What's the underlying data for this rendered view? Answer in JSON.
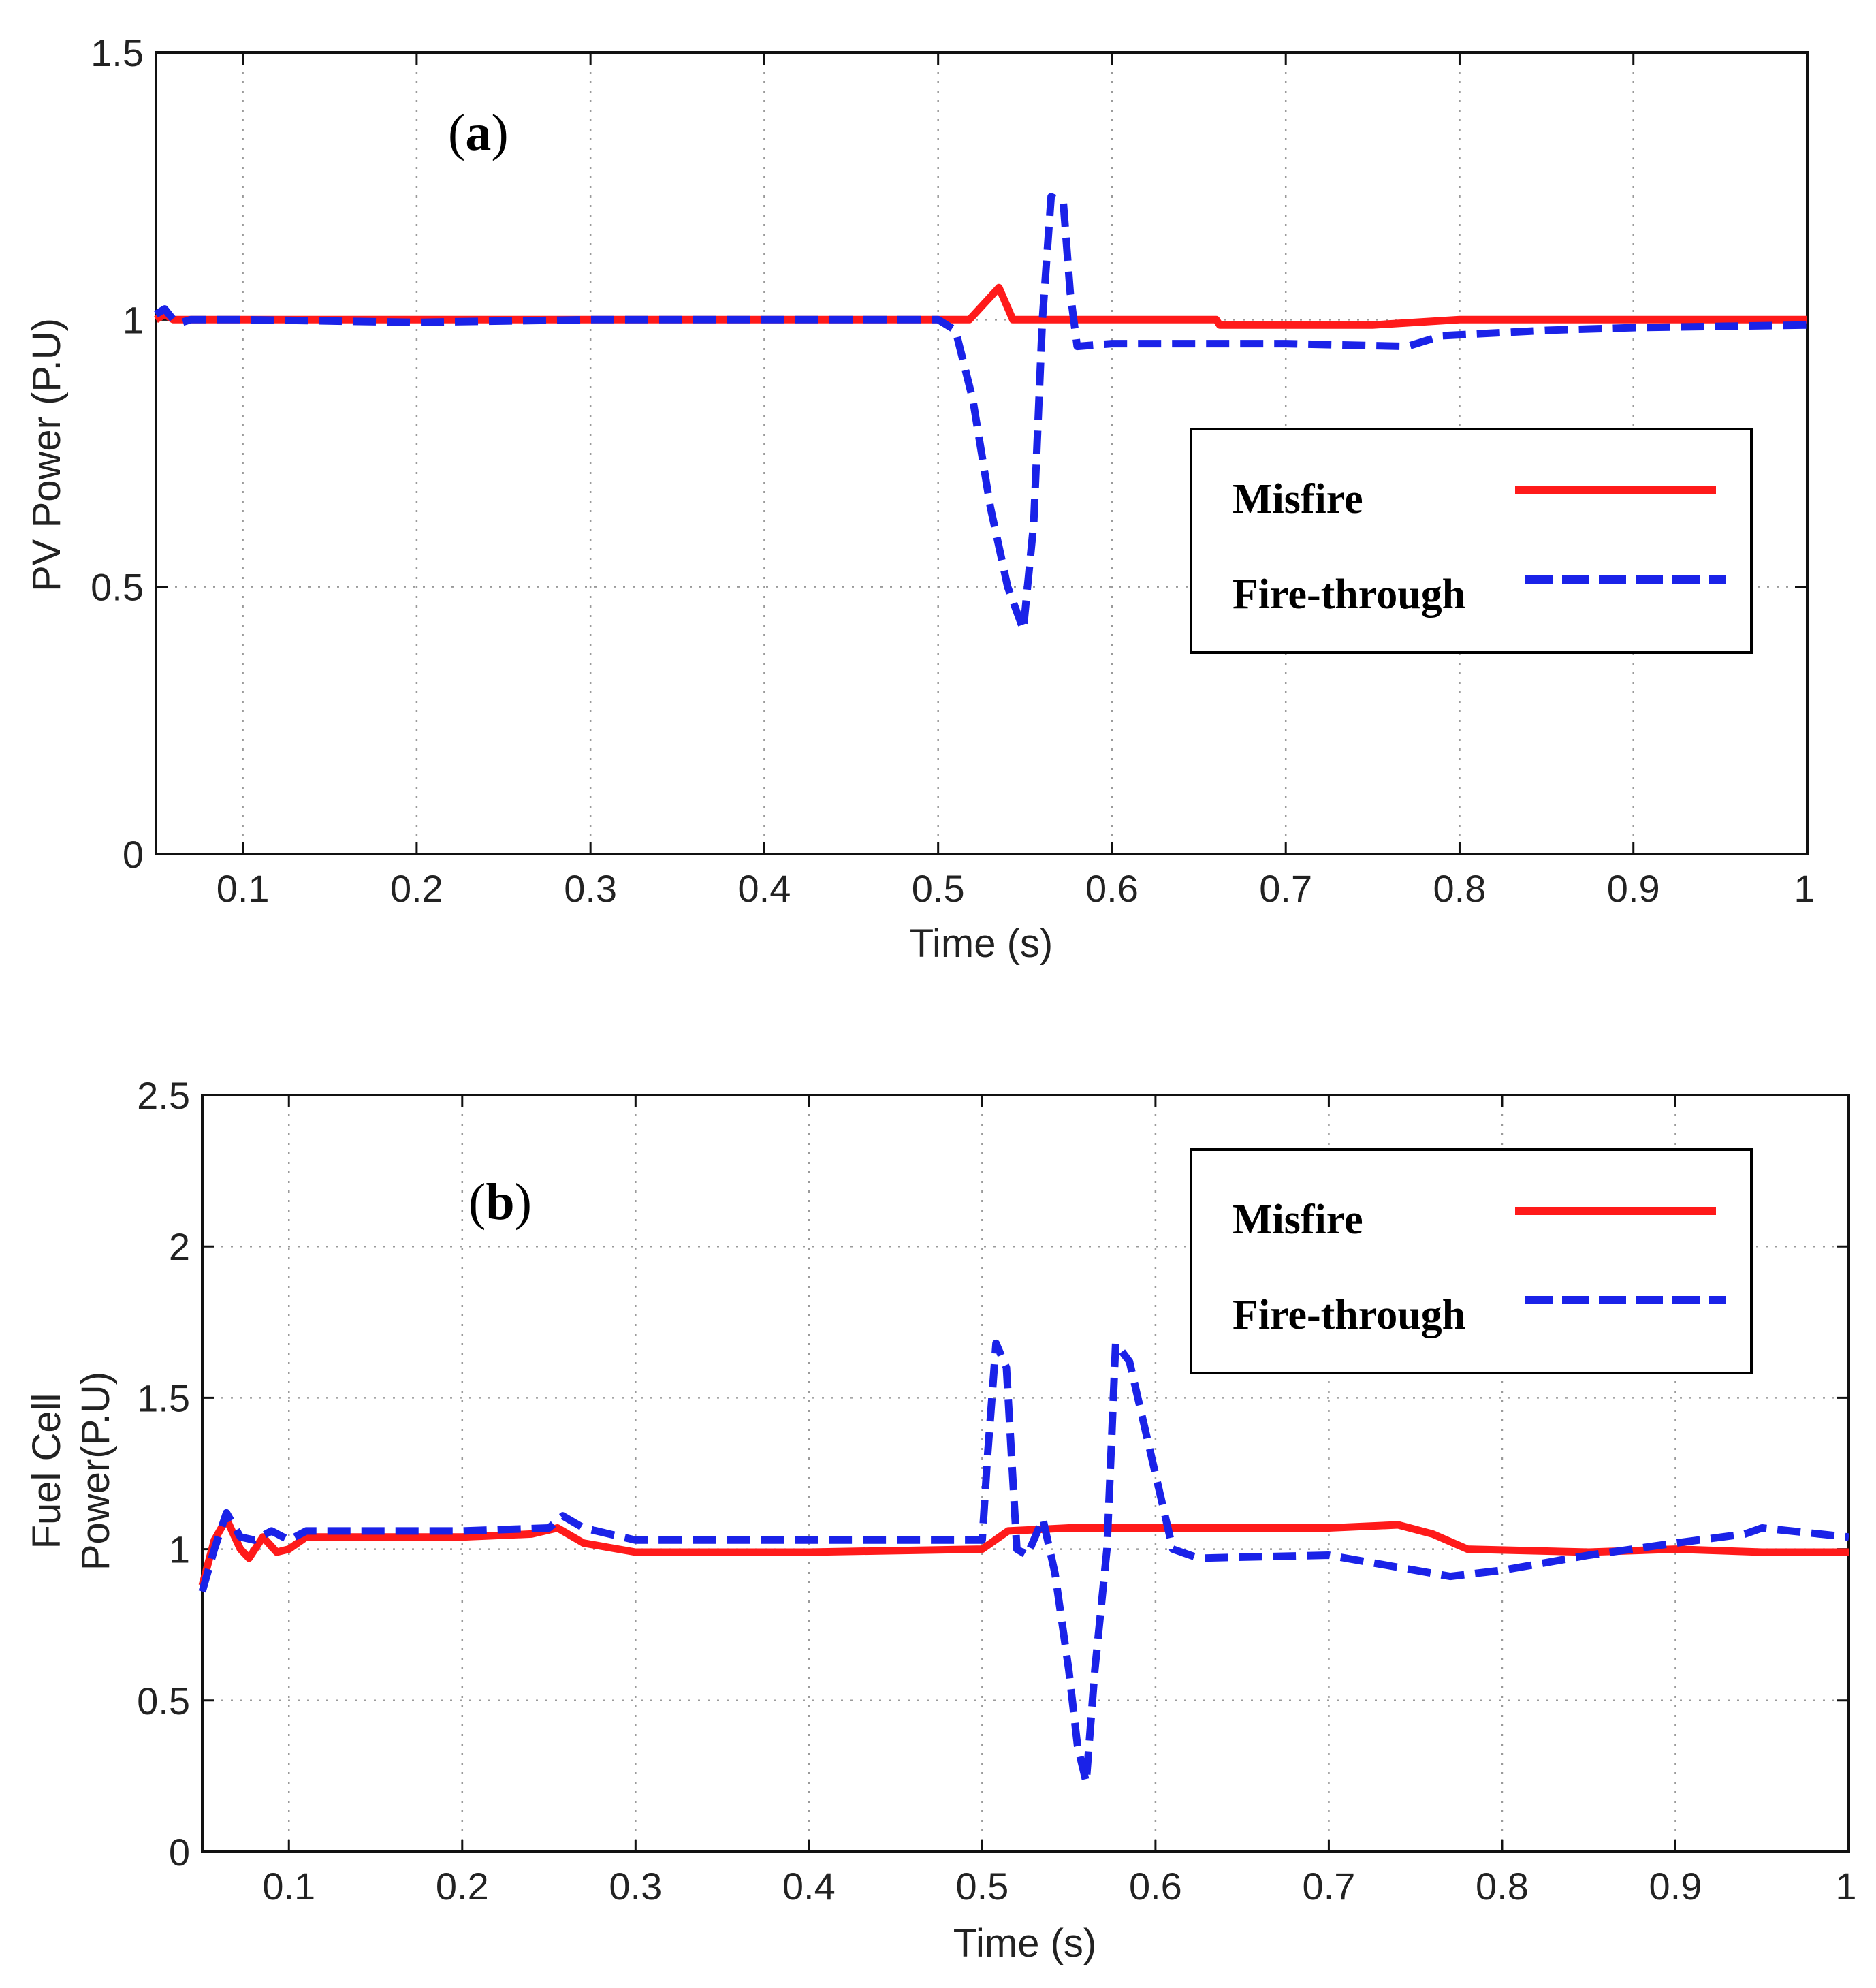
{
  "colors": {
    "misfire": "#ff1a1a",
    "fire_through": "#1a22e8",
    "grid": "#9a9a9a",
    "axis": "#111111"
  },
  "chart_data": [
    {
      "type": "line",
      "panel_label": "a",
      "title": "",
      "xlabel": "Time (s)",
      "ylabel_lines": [
        "PV Power (P.U)"
      ],
      "xlim": [
        0.05,
        1
      ],
      "ylim": [
        0,
        1.5
      ],
      "grid": true,
      "legend_position": "center-right",
      "x_ticks": [
        0.1,
        0.2,
        0.3,
        0.4,
        0.5,
        0.6,
        0.7,
        0.8,
        0.9,
        1
      ],
      "x_tick_labels": [
        "0.1",
        "0.2",
        "0.3",
        "0.4",
        "0.5",
        "0.6",
        "0.7",
        "0.8",
        "0.9",
        "1"
      ],
      "y_ticks": [
        0,
        0.5,
        1,
        1.5
      ],
      "y_tick_labels": [
        "0",
        "0.5",
        "1",
        "1.5"
      ],
      "series": [
        {
          "name": "Misfire",
          "style": "solid",
          "x": [
            0.05,
            0.055,
            0.06,
            0.07,
            0.08,
            0.1,
            0.2,
            0.3,
            0.4,
            0.5,
            0.518,
            0.535,
            0.543,
            0.6,
            0.66,
            0.662,
            0.75,
            0.8,
            0.9,
            1.0
          ],
          "y": [
            1.0,
            1.01,
            1.0,
            1.0,
            1.0,
            1.0,
            1.0,
            1.0,
            1.0,
            1.0,
            1.0,
            1.06,
            1.0,
            1.0,
            1.0,
            0.99,
            0.99,
            1.0,
            1.0,
            1.0
          ]
        },
        {
          "name": "Fire-through",
          "style": "dashed",
          "x": [
            0.05,
            0.055,
            0.06,
            0.065,
            0.07,
            0.08,
            0.1,
            0.2,
            0.3,
            0.4,
            0.5,
            0.51,
            0.52,
            0.53,
            0.54,
            0.549,
            0.555,
            0.56,
            0.565,
            0.572,
            0.576,
            0.58,
            0.6,
            0.7,
            0.77,
            0.79,
            0.85,
            0.9,
            1.0
          ],
          "y": [
            1.01,
            1.02,
            1.0,
            0.995,
            1.0,
            1.0,
            1.0,
            0.995,
            1.0,
            1.0,
            1.0,
            0.98,
            0.85,
            0.65,
            0.5,
            0.42,
            0.62,
            1.0,
            1.23,
            1.22,
            1.05,
            0.95,
            0.955,
            0.955,
            0.95,
            0.97,
            0.98,
            0.985,
            0.99
          ]
        }
      ]
    },
    {
      "type": "line",
      "panel_label": "b",
      "title": "",
      "xlabel": "Time (s)",
      "ylabel_lines": [
        "Fuel Cell",
        "Power(P.U)"
      ],
      "xlim": [
        0.05,
        1
      ],
      "ylim": [
        0,
        2.5
      ],
      "grid": true,
      "legend_position": "top-right",
      "x_ticks": [
        0.1,
        0.2,
        0.3,
        0.4,
        0.5,
        0.6,
        0.7,
        0.8,
        0.9,
        1
      ],
      "x_tick_labels": [
        "0.1",
        "0.2",
        "0.3",
        "0.4",
        "0.5",
        "0.6",
        "0.7",
        "0.8",
        "0.9",
        "1"
      ],
      "y_ticks": [
        0,
        0.5,
        1,
        1.5,
        2,
        2.5
      ],
      "y_tick_labels": [
        "0",
        "0.5",
        "1",
        "1.5",
        "2",
        "2.5"
      ],
      "series": [
        {
          "name": "Misfire",
          "style": "solid",
          "x": [
            0.05,
            0.057,
            0.064,
            0.072,
            0.077,
            0.085,
            0.093,
            0.1,
            0.11,
            0.2,
            0.24,
            0.255,
            0.27,
            0.3,
            0.4,
            0.5,
            0.505,
            0.515,
            0.55,
            0.6,
            0.7,
            0.74,
            0.76,
            0.78,
            0.85,
            0.9,
            0.95,
            1.0
          ],
          "y": [
            0.88,
            1.03,
            1.1,
            1.0,
            0.97,
            1.04,
            0.99,
            1.0,
            1.04,
            1.04,
            1.05,
            1.07,
            1.02,
            0.99,
            0.99,
            1.0,
            1.02,
            1.06,
            1.07,
            1.07,
            1.07,
            1.08,
            1.05,
            1.0,
            0.99,
            1.0,
            0.99,
            0.99
          ]
        },
        {
          "name": "Fire-through",
          "style": "dashed",
          "x": [
            0.05,
            0.057,
            0.064,
            0.072,
            0.08,
            0.09,
            0.1,
            0.11,
            0.12,
            0.2,
            0.25,
            0.258,
            0.27,
            0.3,
            0.4,
            0.5,
            0.503,
            0.508,
            0.514,
            0.52,
            0.526,
            0.535,
            0.542,
            0.55,
            0.555,
            0.56,
            0.565,
            0.572,
            0.577,
            0.585,
            0.61,
            0.625,
            0.7,
            0.76,
            0.77,
            0.8,
            0.85,
            0.9,
            0.94,
            0.95,
            1.0
          ],
          "y": [
            0.86,
            1.0,
            1.12,
            1.04,
            1.03,
            1.06,
            1.03,
            1.06,
            1.06,
            1.06,
            1.07,
            1.11,
            1.07,
            1.03,
            1.03,
            1.03,
            1.3,
            1.68,
            1.6,
            1.0,
            0.98,
            1.1,
            0.92,
            0.6,
            0.35,
            0.23,
            0.6,
            1.0,
            1.68,
            1.62,
            1.0,
            0.97,
            0.98,
            0.92,
            0.91,
            0.93,
            0.98,
            1.02,
            1.05,
            1.07,
            1.04
          ]
        }
      ]
    }
  ]
}
